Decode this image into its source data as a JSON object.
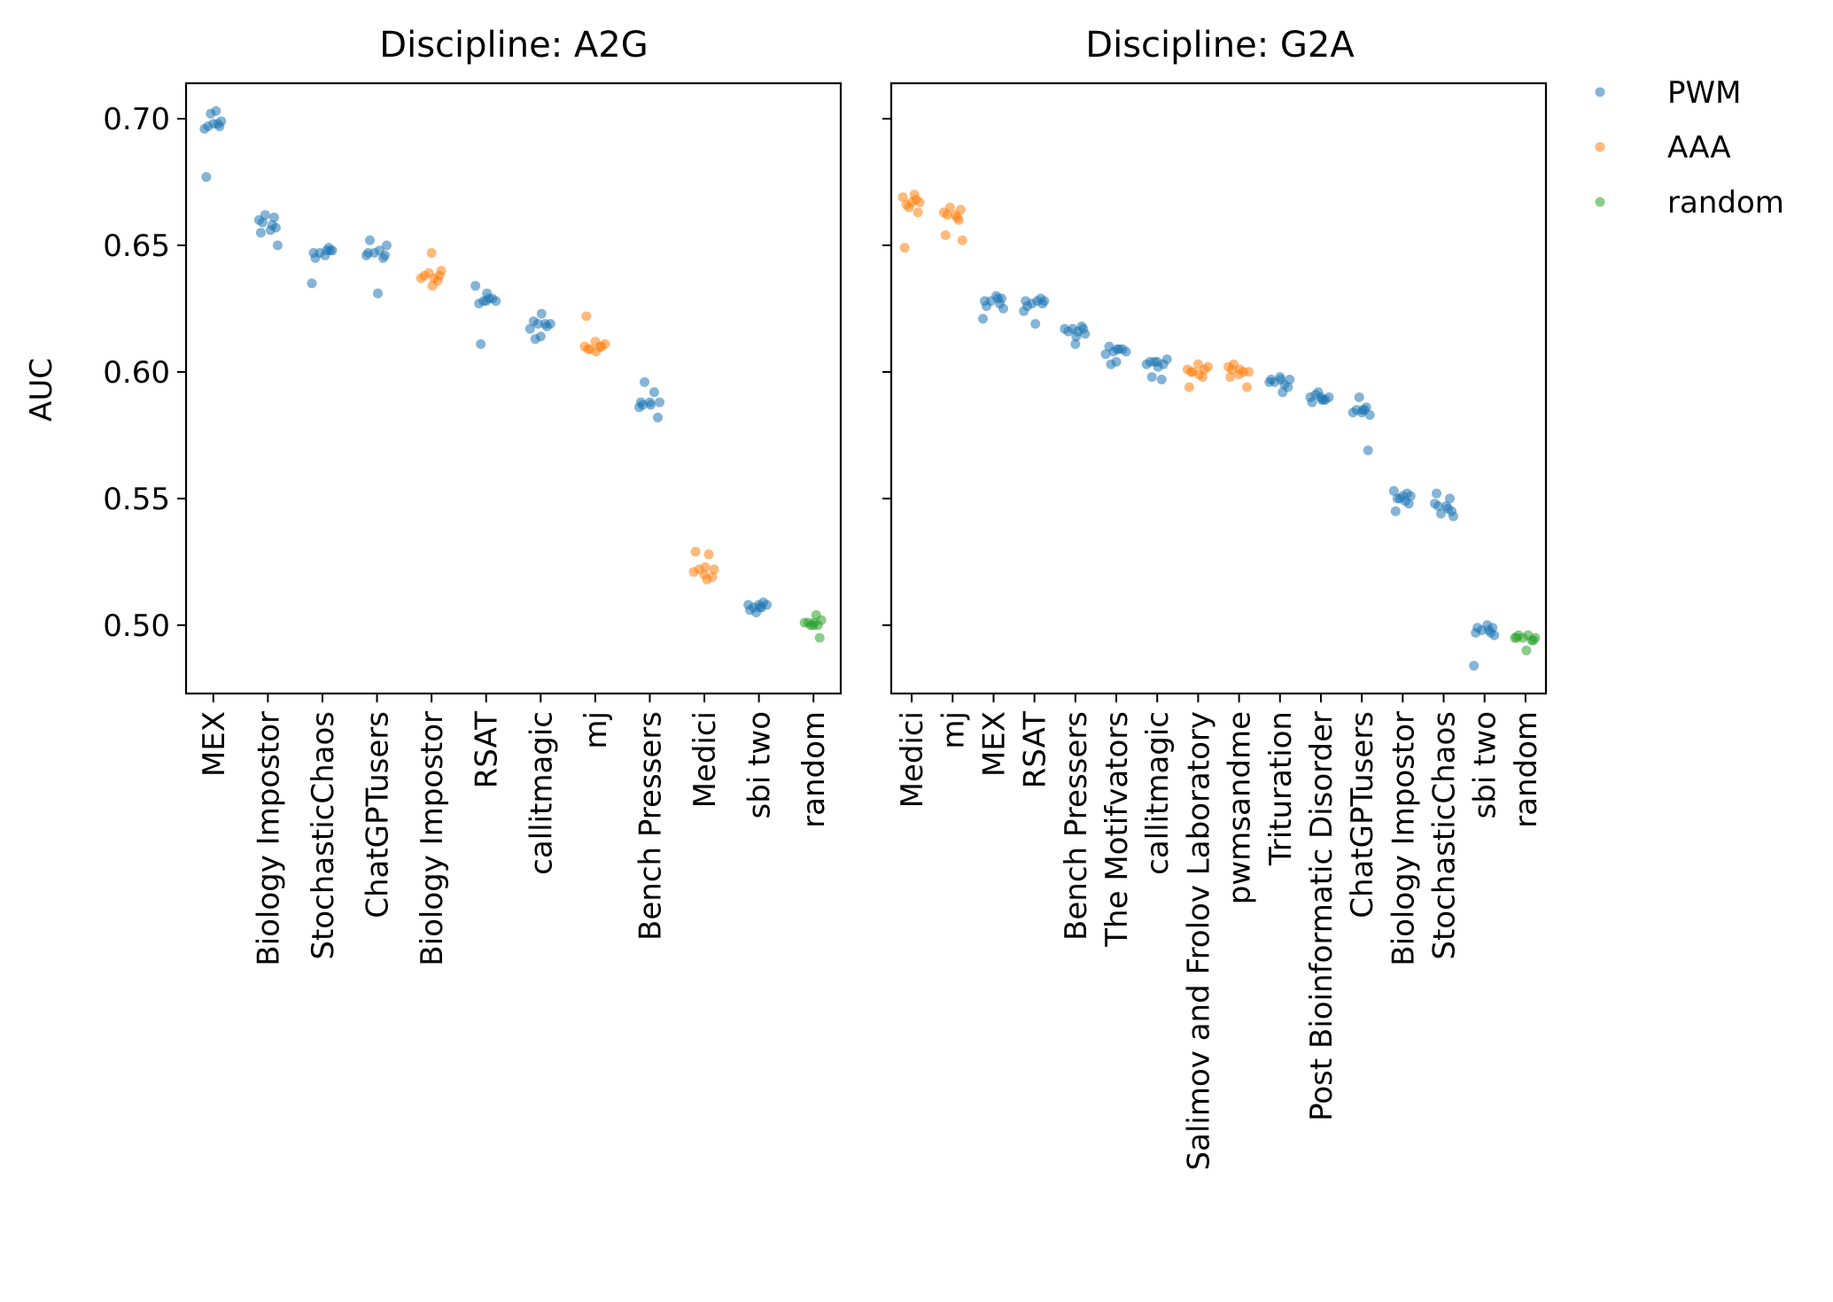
{
  "chart_data": {
    "type": "scatter",
    "ylabel": "AUC",
    "ylim": [
      0.473,
      0.714
    ],
    "yticks": [
      "0.50",
      "0.55",
      "0.60",
      "0.65",
      "0.70"
    ],
    "legend": {
      "placement": "outside-top-right",
      "entries": [
        {
          "key": "PWM",
          "label": "PWM",
          "color": "#1f77b4"
        },
        {
          "key": "AAA",
          "label": "AAA",
          "color": "#ff7f0e"
        },
        {
          "key": "random",
          "label": "random",
          "color": "#2ca02c"
        }
      ]
    },
    "panels": [
      {
        "title": "Discipline: A2G",
        "categories": [
          {
            "label": "MEX",
            "series": "PWM",
            "values": [
              0.698,
              0.697,
              0.698,
              0.696,
              0.699,
              0.703,
              0.702,
              0.697,
              0.677
            ]
          },
          {
            "label": "Biology Impostor",
            "series": "PWM",
            "values": [
              0.659,
              0.658,
              0.66,
              0.657,
              0.656,
              0.662,
              0.661,
              0.655,
              0.65
            ]
          },
          {
            "label": "StochasticChaos",
            "series": "PWM",
            "values": [
              0.648,
              0.647,
              0.648,
              0.646,
              0.647,
              0.649,
              0.645,
              0.648,
              0.635
            ]
          },
          {
            "label": "ChatGPTusers",
            "series": "PWM",
            "values": [
              0.647,
              0.646,
              0.648,
              0.647,
              0.645,
              0.652,
              0.65,
              0.646,
              0.631
            ]
          },
          {
            "label": "Biology Impostor",
            "series": "AAA",
            "values": [
              0.638,
              0.637,
              0.639,
              0.636,
              0.638,
              0.64,
              0.637,
              0.634,
              0.647
            ]
          },
          {
            "label": "RSAT",
            "series": "PWM",
            "values": [
              0.629,
              0.628,
              0.629,
              0.627,
              0.628,
              0.634,
              0.631,
              0.628,
              0.611
            ]
          },
          {
            "label": "callitmagic",
            "series": "PWM",
            "values": [
              0.619,
              0.618,
              0.62,
              0.619,
              0.617,
              0.623,
              0.614,
              0.613,
              0.619
            ]
          },
          {
            "label": "mj",
            "series": "AAA",
            "values": [
              0.61,
              0.609,
              0.611,
              0.61,
              0.608,
              0.612,
              0.609,
              0.61,
              0.622
            ]
          },
          {
            "label": "Bench Pressers",
            "series": "PWM",
            "values": [
              0.587,
              0.588,
              0.586,
              0.587,
              0.588,
              0.596,
              0.592,
              0.588,
              0.582
            ]
          },
          {
            "label": "Medici",
            "series": "AAA",
            "values": [
              0.522,
              0.521,
              0.523,
              0.52,
              0.522,
              0.528,
              0.529,
              0.519,
              0.518
            ]
          },
          {
            "label": "sbi two",
            "series": "PWM",
            "values": [
              0.508,
              0.507,
              0.508,
              0.507,
              0.509,
              0.506,
              0.508,
              0.507,
              0.505
            ]
          },
          {
            "label": "random",
            "series": "random",
            "values": [
              0.501,
              0.5,
              0.501,
              0.5,
              0.501,
              0.502,
              0.504,
              0.5,
              0.495
            ]
          }
        ]
      },
      {
        "title": "Discipline: G2A",
        "categories": [
          {
            "label": "Medici",
            "series": "AAA",
            "values": [
              0.667,
              0.666,
              0.668,
              0.669,
              0.667,
              0.67,
              0.665,
              0.663,
              0.649
            ]
          },
          {
            "label": "mj",
            "series": "AAA",
            "values": [
              0.662,
              0.661,
              0.663,
              0.664,
              0.662,
              0.665,
              0.66,
              0.654,
              0.652
            ]
          },
          {
            "label": "MEX",
            "series": "PWM",
            "values": [
              0.629,
              0.628,
              0.629,
              0.63,
              0.628,
              0.627,
              0.626,
              0.625,
              0.621
            ]
          },
          {
            "label": "RSAT",
            "series": "PWM",
            "values": [
              0.628,
              0.627,
              0.628,
              0.627,
              0.629,
              0.626,
              0.628,
              0.624,
              0.619
            ]
          },
          {
            "label": "Bench Pressers",
            "series": "PWM",
            "values": [
              0.617,
              0.616,
              0.617,
              0.618,
              0.616,
              0.615,
              0.617,
              0.614,
              0.611
            ]
          },
          {
            "label": "The Motifvators",
            "series": "PWM",
            "values": [
              0.609,
              0.608,
              0.609,
              0.61,
              0.608,
              0.607,
              0.609,
              0.604,
              0.603
            ]
          },
          {
            "label": "callitmagic",
            "series": "PWM",
            "values": [
              0.604,
              0.603,
              0.604,
              0.605,
              0.603,
              0.602,
              0.604,
              0.598,
              0.597
            ]
          },
          {
            "label": "Salimov and Frolov Laboratory",
            "series": "AAA",
            "values": [
              0.601,
              0.6,
              0.602,
              0.601,
              0.599,
              0.603,
              0.6,
              0.598,
              0.594
            ]
          },
          {
            "label": "pwmsandme",
            "series": "AAA",
            "values": [
              0.601,
              0.6,
              0.602,
              0.601,
              0.599,
              0.603,
              0.6,
              0.598,
              0.594
            ]
          },
          {
            "label": "Trituration",
            "series": "PWM",
            "values": [
              0.597,
              0.596,
              0.597,
              0.598,
              0.596,
              0.595,
              0.597,
              0.594,
              0.592
            ]
          },
          {
            "label": "Post Bioinformatic Disorder",
            "series": "PWM",
            "values": [
              0.59,
              0.589,
              0.59,
              0.591,
              0.589,
              0.588,
              0.59,
              0.589,
              0.592
            ]
          },
          {
            "label": "ChatGPTusers",
            "series": "PWM",
            "values": [
              0.585,
              0.584,
              0.585,
              0.586,
              0.584,
              0.583,
              0.585,
              0.59,
              0.569
            ]
          },
          {
            "label": "Biology Impostor",
            "series": "PWM",
            "values": [
              0.551,
              0.55,
              0.552,
              0.553,
              0.551,
              0.549,
              0.55,
              0.548,
              0.545
            ]
          },
          {
            "label": "StochasticChaos",
            "series": "PWM",
            "values": [
              0.547,
              0.546,
              0.548,
              0.545,
              0.547,
              0.544,
              0.55,
              0.552,
              0.543
            ]
          },
          {
            "label": "sbi two",
            "series": "PWM",
            "values": [
              0.498,
              0.497,
              0.499,
              0.5,
              0.498,
              0.497,
              0.499,
              0.496,
              0.484
            ]
          },
          {
            "label": "random",
            "series": "random",
            "values": [
              0.495,
              0.494,
              0.496,
              0.495,
              0.494,
              0.496,
              0.495,
              0.495,
              0.49
            ]
          }
        ]
      }
    ]
  }
}
